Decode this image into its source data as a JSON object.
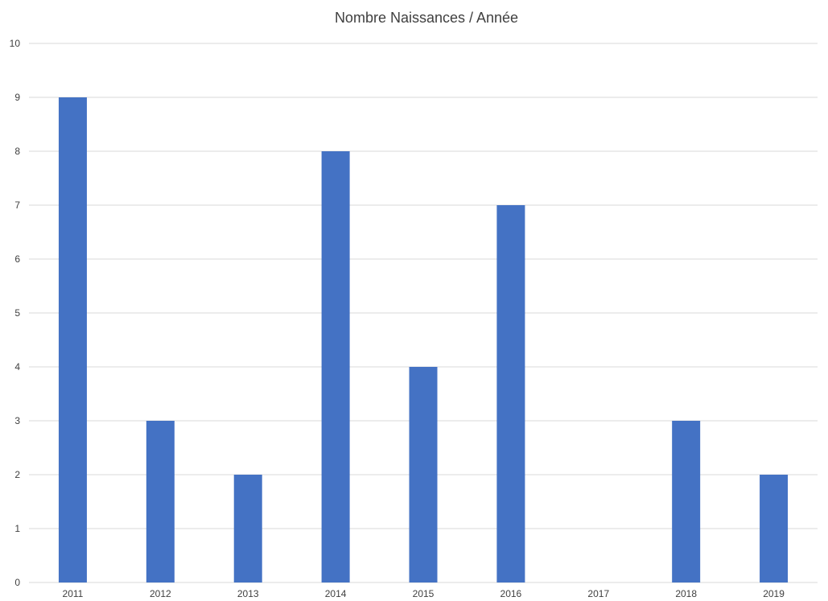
{
  "chart_data": {
    "type": "bar",
    "title": "Nombre Naissances / Année",
    "categories": [
      "2011",
      "2012",
      "2013",
      "2014",
      "2015",
      "2016",
      "2017",
      "2018",
      "2019"
    ],
    "values": [
      9,
      3,
      2,
      8,
      4,
      7,
      0,
      3,
      2
    ],
    "ylim": [
      0,
      10
    ],
    "yticks": [
      "0",
      "1",
      "2",
      "3",
      "4",
      "5",
      "6",
      "7",
      "8",
      "9",
      "10"
    ],
    "xlabel": "",
    "ylabel": "",
    "grid": true,
    "legend": "none",
    "bar_color": "#4472c4",
    "grid_color": "#d9d9d9"
  }
}
